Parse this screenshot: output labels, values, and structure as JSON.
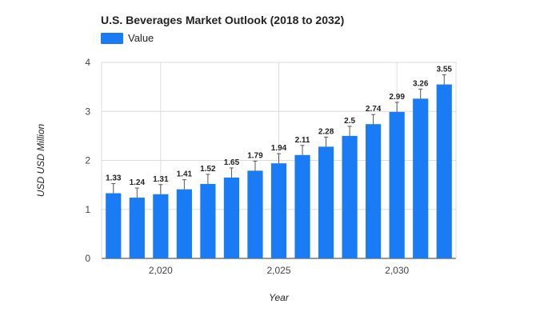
{
  "chart_data": {
    "type": "bar",
    "title": "U.S. Beverages Market Outlook (2018 to 2032)",
    "xlabel": "Year",
    "ylabel": "USD USD Million",
    "categories": [
      2018,
      2019,
      2020,
      2021,
      2022,
      2023,
      2024,
      2025,
      2026,
      2027,
      2028,
      2029,
      2030,
      2031,
      2032
    ],
    "series": [
      {
        "name": "Value",
        "color": "#1a7cf5",
        "values": [
          1.33,
          1.24,
          1.31,
          1.41,
          1.52,
          1.65,
          1.79,
          1.94,
          2.11,
          2.28,
          2.5,
          2.74,
          2.99,
          3.26,
          3.55
        ]
      }
    ],
    "data_labels": [
      "1.33",
      "1.24",
      "1.31",
      "1.41",
      "1.52",
      "1.65",
      "1.79",
      "1.94",
      "2.11",
      "2.28",
      "2.5",
      "2.74",
      "2.99",
      "3.26",
      "3.55"
    ],
    "ylim": [
      0,
      4
    ],
    "xlim": [
      2017.5,
      2032.5
    ],
    "y_ticks": [
      0,
      1,
      2,
      3,
      4
    ],
    "y_tick_labels": [
      "0",
      "1",
      "2",
      "3",
      "4"
    ],
    "x_ticks": [
      2020,
      2025,
      2030
    ],
    "x_tick_labels": [
      "2,020",
      "2,025",
      "2,030"
    ],
    "grid": true,
    "legend_position": "top-left",
    "error_bars": true
  }
}
